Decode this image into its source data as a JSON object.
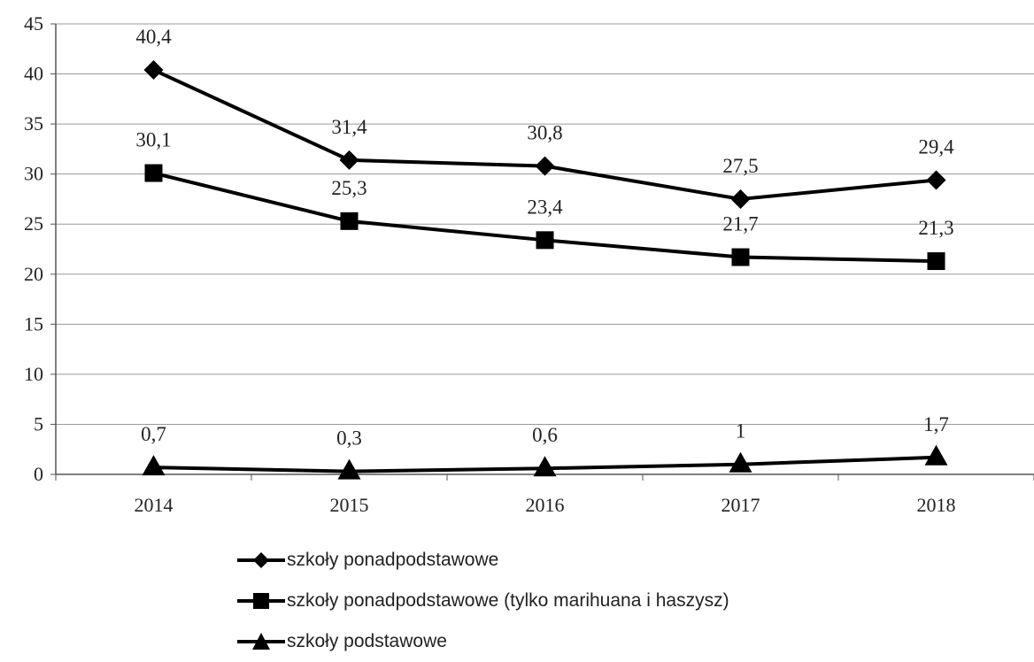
{
  "chart_data": {
    "type": "line",
    "categories": [
      "2014",
      "2015",
      "2016",
      "2017",
      "2018"
    ],
    "ylim": [
      0,
      45
    ],
    "yticks": [
      0,
      5,
      10,
      15,
      20,
      25,
      30,
      35,
      40,
      45
    ],
    "grid": true,
    "legend_position": "bottom",
    "series": [
      {
        "name": "szkoły ponadpodstawowe",
        "marker": "diamond",
        "values": [
          40.4,
          31.4,
          30.8,
          27.5,
          29.4
        ],
        "labels": [
          "40,4",
          "31,4",
          "30,8",
          "27,5",
          "29,4"
        ]
      },
      {
        "name": "szkoły ponadpodstawowe (tylko marihuana i haszysz)",
        "marker": "square",
        "values": [
          30.1,
          25.3,
          23.4,
          21.7,
          21.3
        ],
        "labels": [
          "30,1",
          "25,3",
          "23,4",
          "21,7",
          "21,3"
        ]
      },
      {
        "name": "szkoły podstawowe",
        "marker": "triangle",
        "values": [
          0.7,
          0.3,
          0.6,
          1.0,
          1.7
        ],
        "labels": [
          "0,7",
          "0,3",
          "0,6",
          "1",
          "1,7"
        ]
      }
    ],
    "colors": {
      "line": "#000000",
      "grid": "#9a9a9a",
      "text": "#222222"
    }
  }
}
